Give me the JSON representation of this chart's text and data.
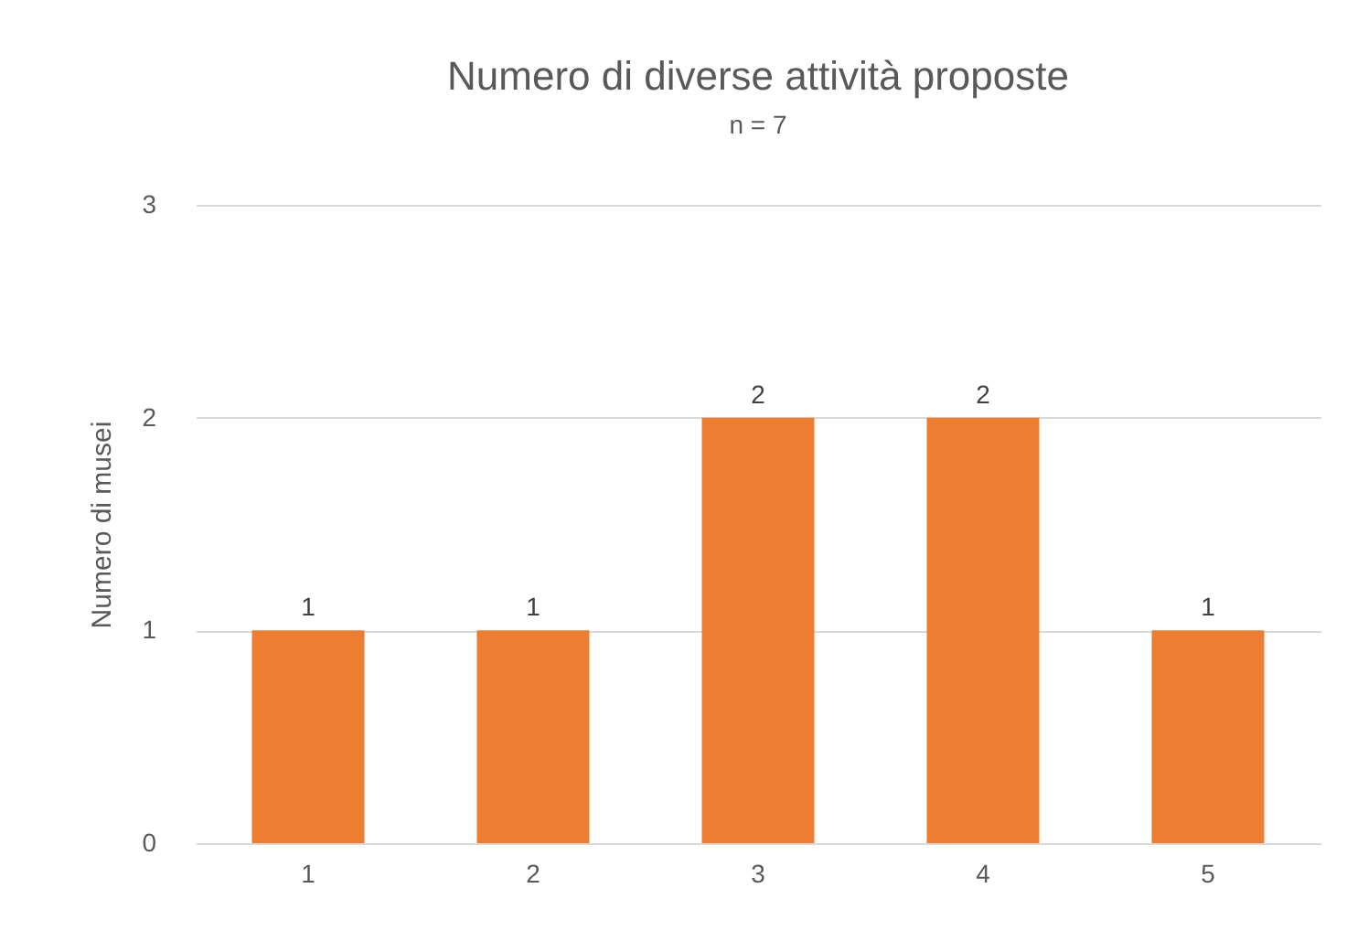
{
  "chart_data": {
    "type": "bar",
    "title": "Numero di diverse attività proposte",
    "subtitle": "n = 7",
    "ylabel": "Numero di musei",
    "categories": [
      "1",
      "2",
      "3",
      "4",
      "5"
    ],
    "values": [
      1,
      1,
      2,
      2,
      1
    ],
    "color": "#ed7d31",
    "ylim": [
      0,
      3
    ],
    "yticks": [
      0,
      1,
      2,
      3
    ],
    "grid": "y",
    "data_labels": true
  }
}
